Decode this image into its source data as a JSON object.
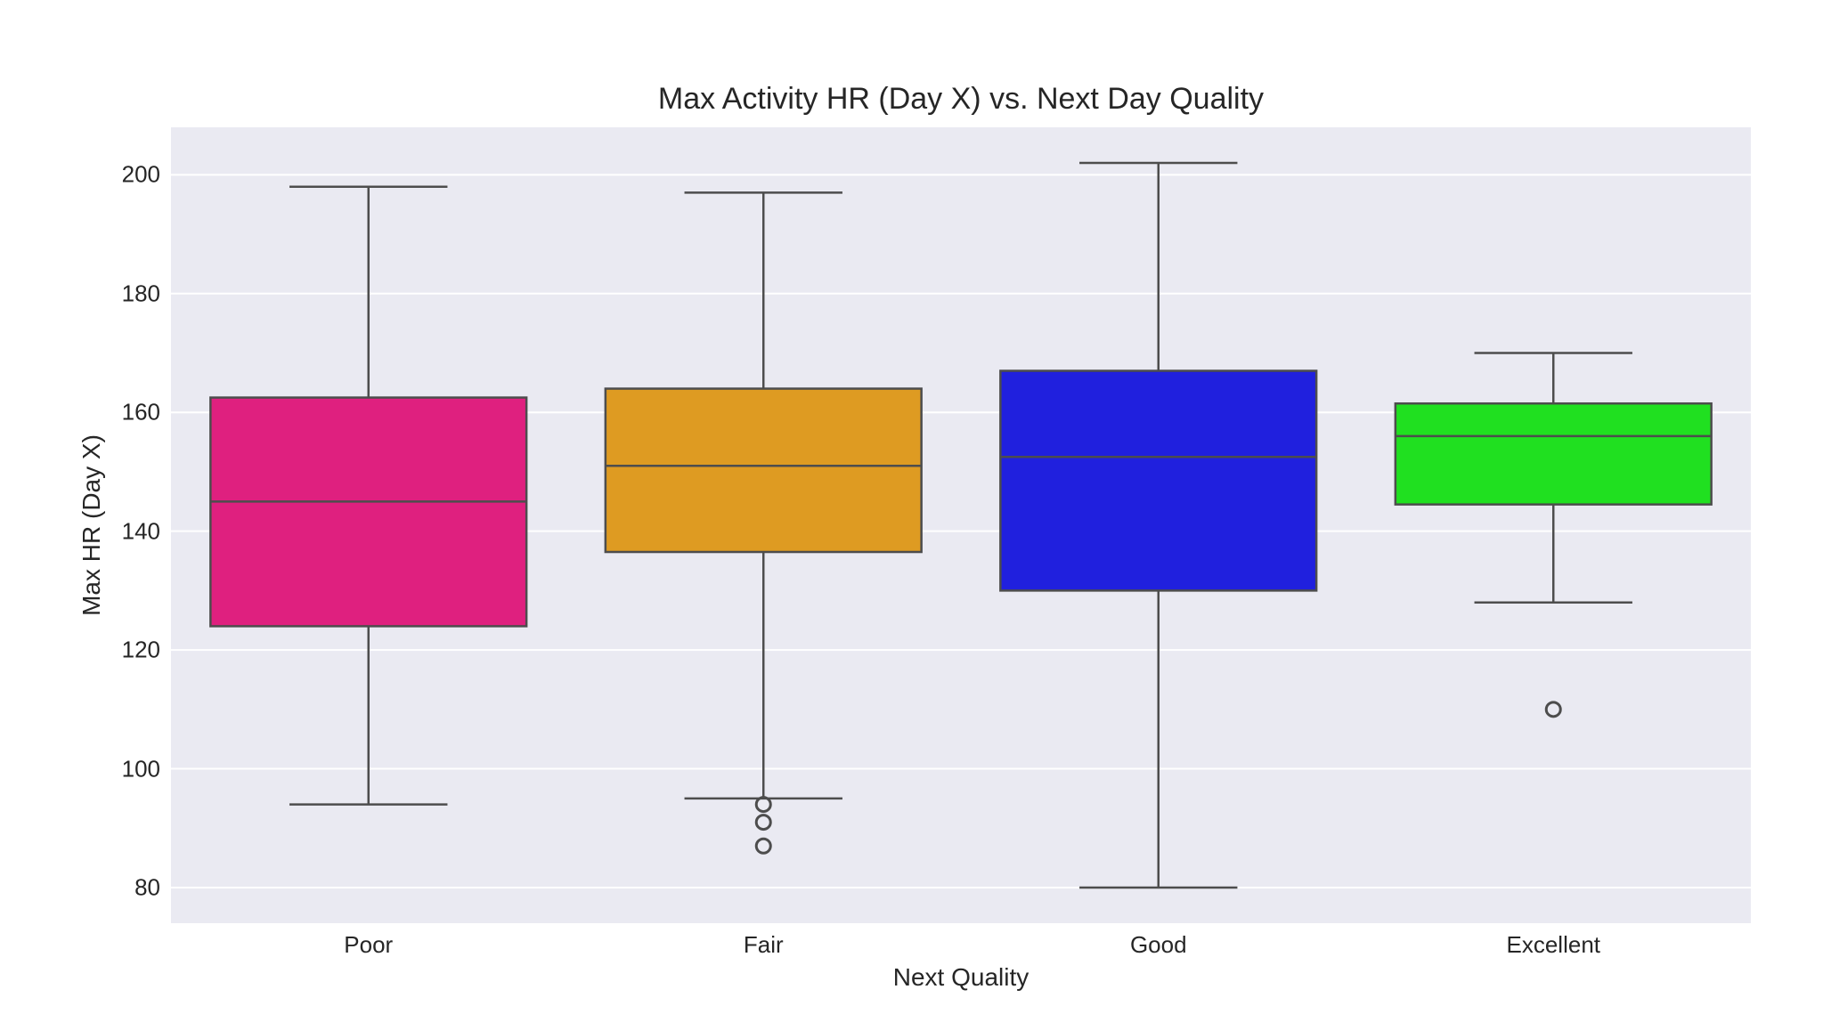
{
  "chart_data": {
    "type": "box",
    "title": "Max Activity HR (Day X) vs. Next Day Quality",
    "xlabel": "Next Quality",
    "ylabel": "Max HR (Day X)",
    "categories": [
      "Poor",
      "Fair",
      "Good",
      "Excellent"
    ],
    "ylim": [
      74,
      208
    ],
    "yticks": [
      80,
      100,
      120,
      140,
      160,
      180,
      200
    ],
    "grid": true,
    "legend": null,
    "series": [
      {
        "name": "Poor",
        "color": "#DF207F",
        "whisker_low": 94,
        "q1": 124,
        "median": 145,
        "q3": 162.5,
        "whisker_high": 198,
        "outliers": []
      },
      {
        "name": "Fair",
        "color": "#DE9B22",
        "whisker_low": 95,
        "q1": 136.5,
        "median": 151,
        "q3": 164,
        "whisker_high": 197,
        "outliers": [
          94,
          91,
          87
        ]
      },
      {
        "name": "Good",
        "color": "#2020DE",
        "whisker_low": 80,
        "q1": 130,
        "median": 152.5,
        "q3": 167,
        "whisker_high": 202,
        "outliers": []
      },
      {
        "name": "Excellent",
        "color": "#20E020",
        "whisker_low": 128,
        "q1": 144.5,
        "median": 156,
        "q3": 161.5,
        "whisker_high": 170,
        "outliers": [
          110
        ]
      }
    ]
  },
  "style": {
    "plot_bg": "#EAEAF2",
    "grid_color": "#FFFFFF",
    "edge_color": "#4D4D4D"
  }
}
